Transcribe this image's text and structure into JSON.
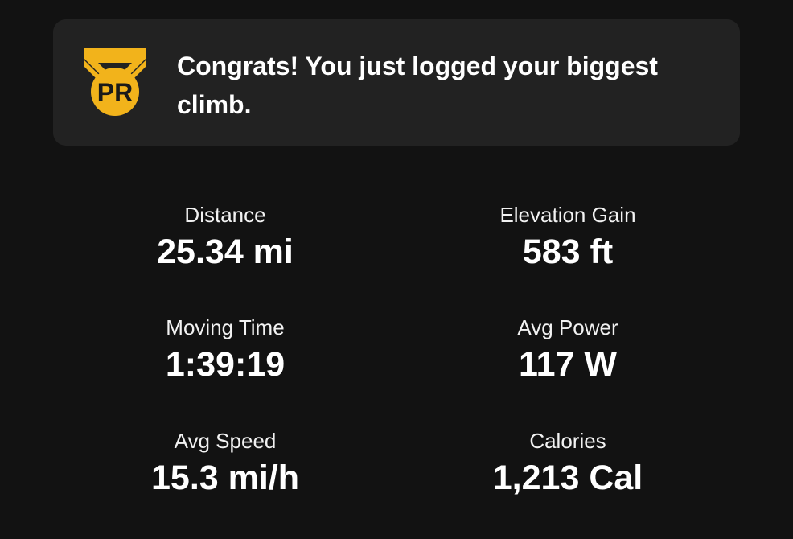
{
  "banner": {
    "icon": "pr-medal-icon",
    "badge_text": "PR",
    "message": "Congrats! You just logged your biggest climb.",
    "accent_color": "#F2B31B"
  },
  "stats": [
    {
      "label": "Distance",
      "value": "25.34 mi"
    },
    {
      "label": "Elevation Gain",
      "value": "583 ft"
    },
    {
      "label": "Moving Time",
      "value": "1:39:19"
    },
    {
      "label": "Avg Power",
      "value": "117 W"
    },
    {
      "label": "Avg Speed",
      "value": "15.3 mi/h"
    },
    {
      "label": "Calories",
      "value": "1,213 Cal"
    }
  ]
}
